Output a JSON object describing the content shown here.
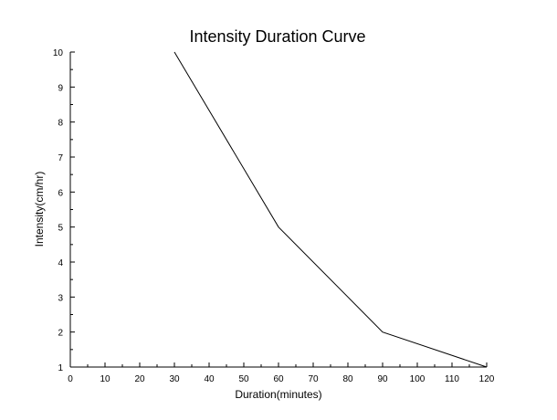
{
  "chart_data": {
    "type": "line",
    "title": "Intensity Duration Curve",
    "xlabel": "Duration(minutes)",
    "ylabel": "Intensity(cm/hr)",
    "xlim": [
      0,
      120
    ],
    "ylim": [
      1,
      10
    ],
    "xticks": [
      0,
      10,
      20,
      30,
      40,
      50,
      60,
      70,
      80,
      90,
      100,
      110,
      120
    ],
    "yticks": [
      1,
      2,
      3,
      4,
      5,
      6,
      7,
      8,
      9,
      10
    ],
    "grid": false,
    "series": [
      {
        "x": [
          30,
          60,
          90,
          120
        ],
        "y": [
          10,
          5,
          2,
          1
        ],
        "color": "#000000"
      }
    ]
  }
}
